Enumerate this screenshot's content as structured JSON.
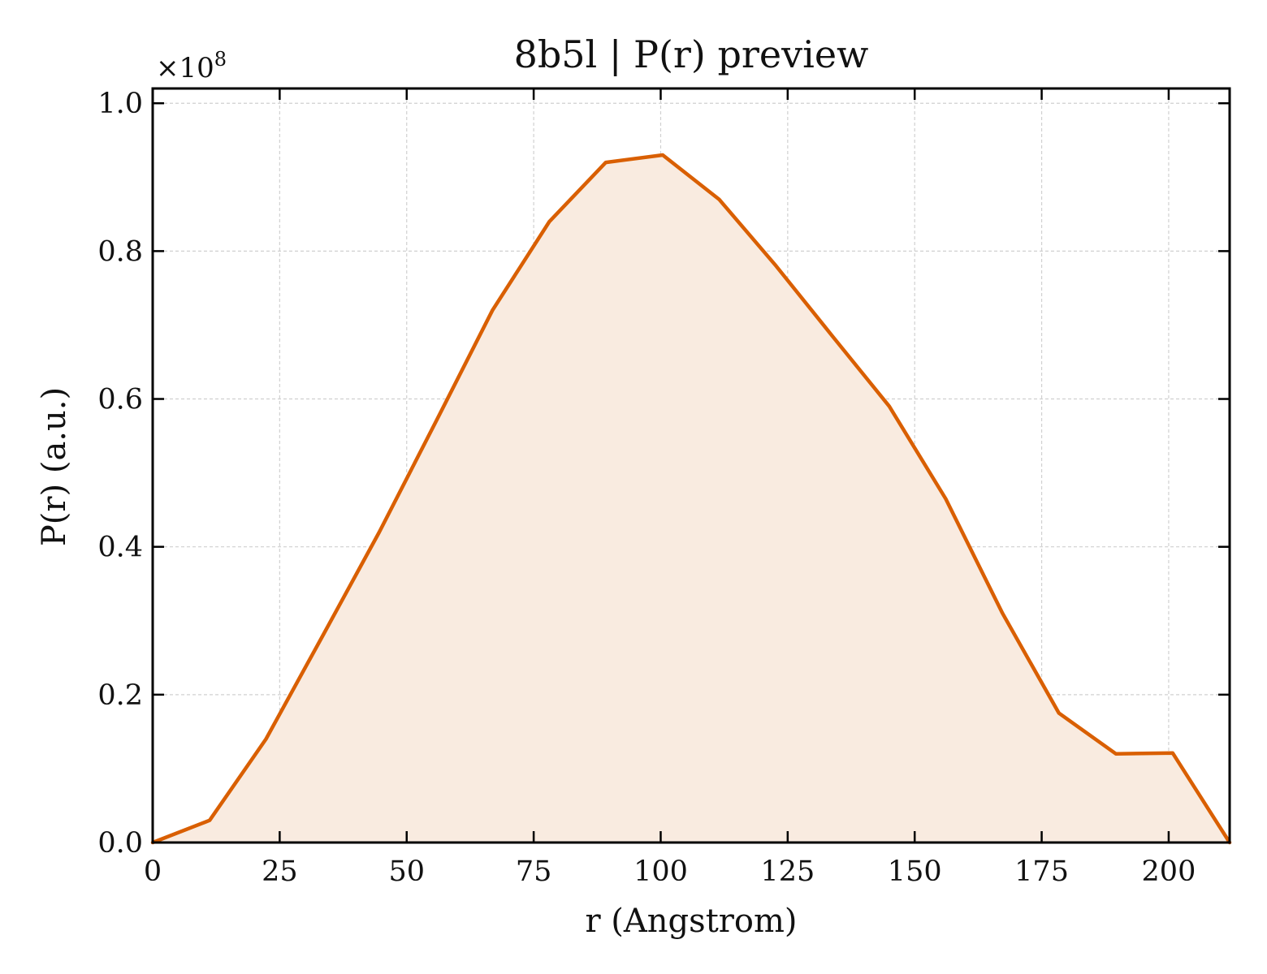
{
  "chart_data": {
    "type": "area",
    "title": "8b5l | P(r) preview",
    "xlabel": "r (Angstrom)",
    "ylabel": "P(r) (a.u.)",
    "y_offset_label": {
      "base": "×10",
      "exponent": "8"
    },
    "xlim": [
      0,
      212
    ],
    "ylim": [
      0,
      1.02
    ],
    "y_scale": 100000000,
    "x_ticks": [
      0,
      25,
      50,
      75,
      100,
      125,
      150,
      175,
      200
    ],
    "x_tick_labels": [
      "0",
      "25",
      "50",
      "75",
      "100",
      "125",
      "150",
      "175",
      "200"
    ],
    "y_ticks": [
      0,
      0.2,
      0.4,
      0.6,
      0.8,
      1.0
    ],
    "y_tick_labels": [
      "0.0",
      "0.2",
      "0.4",
      "0.6",
      "0.8",
      "1.0"
    ],
    "grid": true,
    "legend": "none",
    "line_color": "#d95f02",
    "fill_color": "#f9ebe0",
    "series": [
      {
        "x": [
          0,
          11.2,
          22.3,
          33.5,
          44.6,
          55.8,
          66.9,
          78.1,
          89.2,
          100.4,
          111.5,
          122.7,
          133.8,
          145.0,
          156.1,
          167.3,
          178.4,
          189.6,
          200.8,
          212
        ],
        "y": [
          0.0,
          0.03,
          0.14,
          0.28,
          0.42,
          0.57,
          0.72,
          0.84,
          0.92,
          0.93,
          0.87,
          0.78,
          0.685,
          0.59,
          0.465,
          0.31,
          0.175,
          0.12,
          0.121,
          0.0
        ]
      }
    ]
  }
}
